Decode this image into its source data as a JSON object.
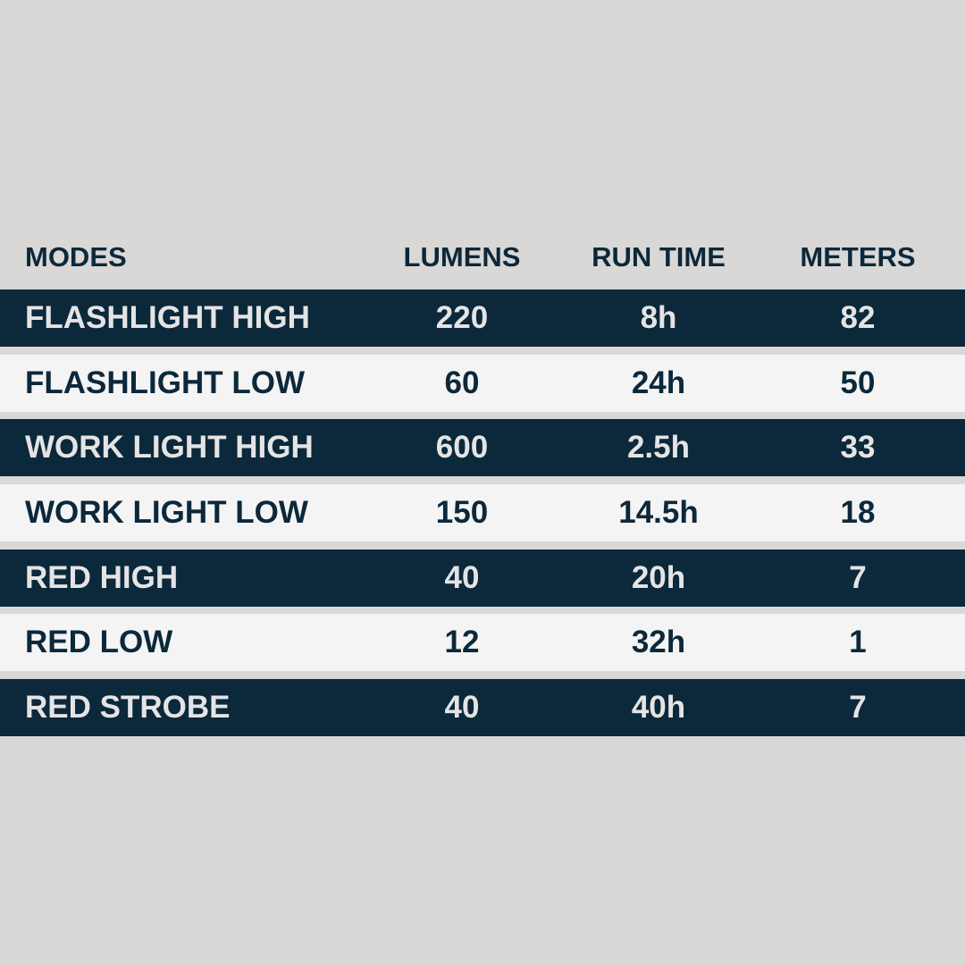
{
  "table": {
    "headers": [
      "MODES",
      "LUMENS",
      "RUN TIME",
      "METERS"
    ],
    "rows": [
      [
        "FLASHLIGHT HIGH",
        "220",
        "8h",
        "82"
      ],
      [
        "FLASHLIGHT LOW",
        "60",
        "24h",
        "50"
      ],
      [
        "WORK LIGHT HIGH",
        "600",
        "2.5h",
        "33"
      ],
      [
        "WORK LIGHT LOW",
        "150",
        "14.5h",
        "18"
      ],
      [
        "RED HIGH",
        "40",
        "20h",
        "7"
      ],
      [
        "RED LOW",
        "12",
        "32h",
        "1"
      ],
      [
        "RED STROBE",
        "40",
        "40h",
        "7"
      ]
    ]
  },
  "colors": {
    "dark_row": "#0c283b",
    "light_row": "#f4f4f4",
    "background": "#d9d8d6"
  }
}
